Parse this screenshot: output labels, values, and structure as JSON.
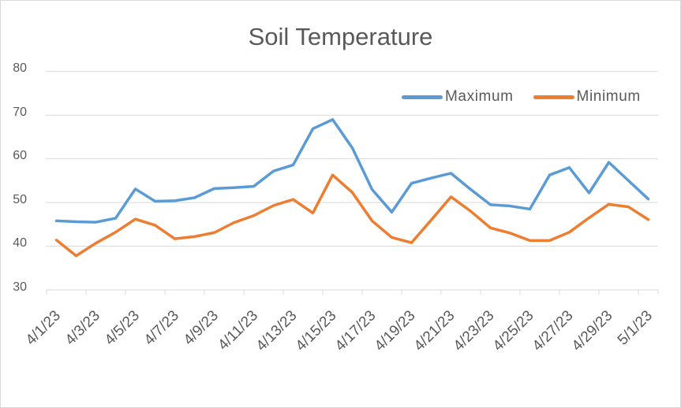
{
  "chart_data": {
    "type": "line",
    "title": "Soil Temperature",
    "categories": [
      "4/1/23",
      "4/2/23",
      "4/3/23",
      "4/4/23",
      "4/5/23",
      "4/6/23",
      "4/7/23",
      "4/8/23",
      "4/9/23",
      "4/10/23",
      "4/11/23",
      "4/12/23",
      "4/13/23",
      "4/14/23",
      "4/15/23",
      "4/16/23",
      "4/17/23",
      "4/18/23",
      "4/19/23",
      "4/20/23",
      "4/21/23",
      "4/22/23",
      "4/23/23",
      "4/24/23",
      "4/25/23",
      "4/26/23",
      "4/27/23",
      "4/28/23",
      "4/29/23",
      "4/30/23",
      "5/1/23"
    ],
    "x_tick_labels": [
      "4/1/23",
      "4/3/23",
      "4/5/23",
      "4/7/23",
      "4/9/23",
      "4/11/23",
      "4/13/23",
      "4/15/23",
      "4/17/23",
      "4/19/23",
      "4/21/23",
      "4/23/23",
      "4/25/23",
      "4/27/23",
      "4/29/23",
      "5/1/23"
    ],
    "label_interval": 2,
    "ylim": [
      30,
      80
    ],
    "y_ticks": [
      30,
      40,
      50,
      60,
      70,
      80
    ],
    "grid": true,
    "legend_position": "top-right",
    "series": [
      {
        "name": "Maximum",
        "color": "#5B9BD5",
        "values": [
          45.8,
          45.6,
          45.5,
          46.4,
          53.1,
          50.3,
          50.4,
          51.1,
          53.2,
          53.4,
          53.7,
          57.2,
          58.6,
          66.9,
          69.0,
          62.5,
          53.0,
          47.8,
          54.4,
          55.6,
          56.7,
          53.0,
          49.5,
          49.2,
          48.5,
          56.3,
          58.0,
          52.2,
          59.2,
          55.0,
          50.8
        ]
      },
      {
        "name": "Minimum",
        "color": "#ED7D31",
        "values": [
          41.4,
          37.8,
          40.7,
          43.2,
          46.2,
          44.8,
          41.7,
          42.2,
          43.1,
          45.4,
          47.0,
          49.3,
          50.7,
          47.6,
          56.3,
          52.3,
          45.8,
          42.0,
          40.8,
          46.0,
          51.3,
          48.0,
          44.2,
          43.0,
          41.3,
          41.3,
          43.2,
          46.5,
          49.6,
          49.0,
          46.1
        ]
      }
    ]
  },
  "colors": {
    "grid": "#D9D9D9",
    "axis_text": "#595959",
    "title_text": "#595959",
    "border": "#D9D9D9",
    "background": "#FFFFFF"
  }
}
